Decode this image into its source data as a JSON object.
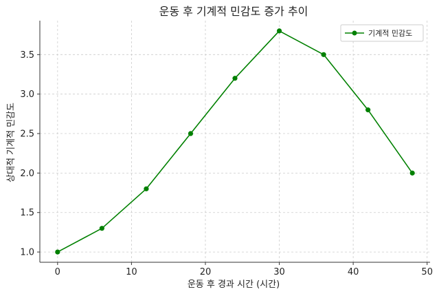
{
  "chart_data": {
    "type": "line",
    "title": "운동 후 기계적 민감도 증가 추이",
    "xlabel": "운동 후 경과 시간 (시간)",
    "ylabel": "상대적 기계적 민감도",
    "xlim": [
      -2.4,
      50.4
    ],
    "ylim": [
      0.87,
      3.93
    ],
    "xticks": [
      0,
      10,
      20,
      30,
      40,
      50
    ],
    "yticks": [
      1.0,
      1.5,
      2.0,
      2.5,
      3.0,
      3.5
    ],
    "grid": true,
    "legend_position": "top-right",
    "series": [
      {
        "name": "기계적 민감도",
        "color": "#008000",
        "marker": "circle",
        "x": [
          0,
          6,
          12,
          18,
          24,
          30,
          36,
          42,
          48
        ],
        "y": [
          1.0,
          1.3,
          1.8,
          2.5,
          3.2,
          3.8,
          3.5,
          2.8,
          2.0
        ]
      }
    ]
  }
}
